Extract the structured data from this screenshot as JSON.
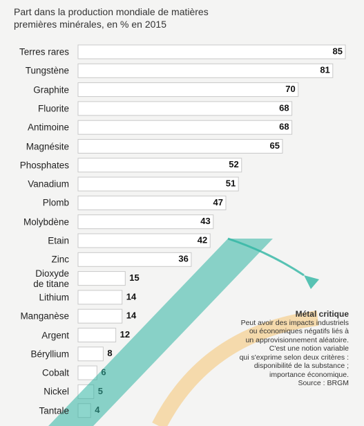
{
  "chart_data": {
    "type": "bar",
    "orientation": "horizontal",
    "title": "Part dans la production mondiale de matières premières minérales, en % en 2015",
    "categories": [
      "Terres rares",
      "Tungstène",
      "Graphite",
      "Fluorite",
      "Antimoine",
      "Magnésite",
      "Phosphates",
      "Vanadium",
      "Plomb",
      "Molybdène",
      "Etain",
      "Zinc",
      "Dioxyde\nde titane",
      "Lithium",
      "Manganèse",
      "Argent",
      "Béryllium",
      "Cobalt",
      "Nickel",
      "Tantale"
    ],
    "values": [
      85,
      81,
      70,
      68,
      68,
      65,
      52,
      51,
      47,
      43,
      42,
      36,
      15,
      14,
      14,
      12,
      8,
      6,
      5,
      4
    ],
    "color": "#ffffff",
    "annotation": {
      "title": "Métal critique",
      "lines": [
        "Peut avoir des impacts industriels",
        "ou économiques négatifs liés à",
        "un approvisionnement aléatoire.",
        "C'est une notion variable",
        "qui s'exprime selon deux critères :",
        "disponibilité de la substance ;",
        "importance économique."
      ],
      "source": "Source : BRGM"
    }
  }
}
